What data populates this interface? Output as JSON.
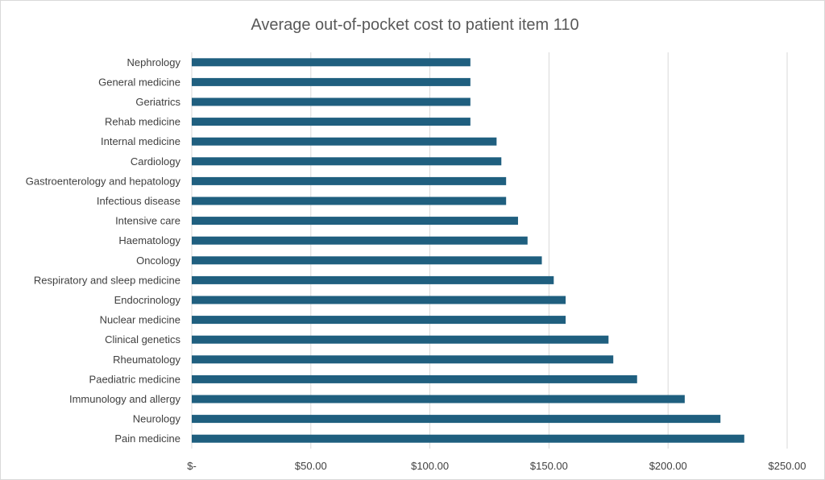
{
  "chart_data": {
    "type": "bar",
    "orientation": "horizontal",
    "title": "Average out-of-pocket cost to patient item 110",
    "xlabel": "",
    "ylabel": "",
    "categories": [
      "Nephrology",
      "General medicine",
      "Geriatrics",
      "Rehab medicine",
      "Internal medicine",
      "Cardiology",
      "Gastroenterology and hepatology",
      "Infectious disease",
      "Intensive care",
      "Haematology",
      "Oncology",
      "Respiratory and sleep medicine",
      "Endocrinology",
      "Nuclear medicine",
      "Clinical genetics",
      "Rheumatology",
      "Paediatric medicine",
      "Immunology and allergy",
      "Neurology",
      "Pain medicine"
    ],
    "values": [
      117,
      117,
      117,
      117,
      128,
      130,
      132,
      132,
      137,
      141,
      147,
      152,
      157,
      157,
      175,
      177,
      187,
      207,
      222,
      232
    ],
    "xlim": [
      0,
      250
    ],
    "x_ticks": [
      0,
      50,
      100,
      150,
      200,
      250
    ],
    "x_tick_labels": [
      "$-",
      "$50.00",
      "$100.00",
      "$150.00",
      "$200.00",
      "$250.00"
    ],
    "grid": "vertical",
    "legend": "none",
    "bar_color": "#1f5f7f",
    "grid_color": "#d9d9d9"
  }
}
